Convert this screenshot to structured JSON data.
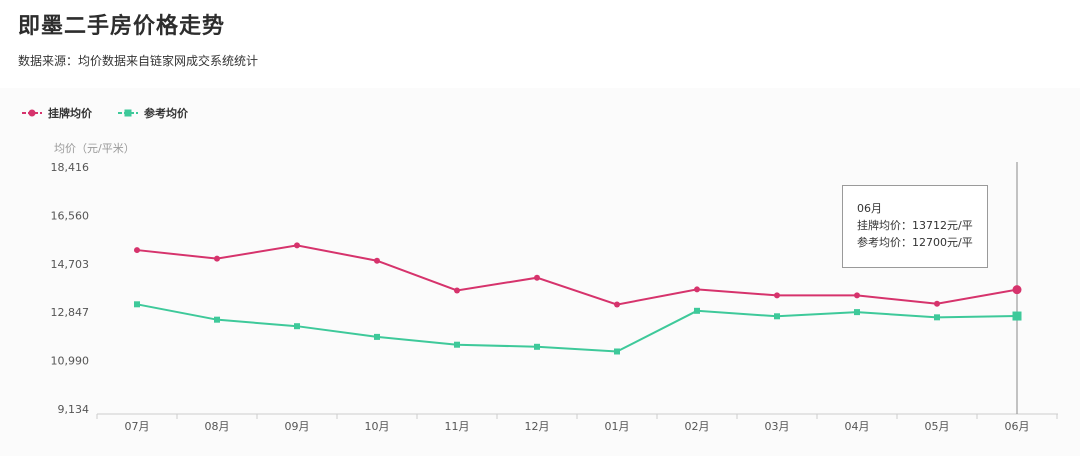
{
  "title": "即墨二手房价格走势",
  "subtitle": "数据来源：均价数据来自链家网成交系统统计",
  "colors": {
    "listing": "#d6336c",
    "reference": "#3ec99a"
  },
  "tooltip": {
    "month": "06月",
    "listing_line": "挂牌均价：13712元/平",
    "reference_line": "参考均价：12700元/平"
  },
  "chart_data": {
    "type": "line",
    "title": "",
    "ylabel": "均价（元/平米）",
    "xlabel": "",
    "ylim": [
      9134,
      18416
    ],
    "yticks": [
      "18,416",
      "16,560",
      "14,703",
      "12,847",
      "10,990",
      "9,134"
    ],
    "ytick_values": [
      18416,
      16560,
      14703,
      12847,
      10990,
      9134
    ],
    "categories": [
      "07月",
      "08月",
      "09月",
      "10月",
      "11月",
      "12月",
      "01月",
      "02月",
      "03月",
      "04月",
      "05月",
      "06月"
    ],
    "legend_position": "top-left",
    "grid": false,
    "series": [
      {
        "name": "挂牌均价",
        "marker": "circle",
        "color": "#d6336c",
        "values": [
          15230,
          14900,
          15410,
          14820,
          13680,
          14170,
          13140,
          13720,
          13490,
          13490,
          13170,
          13712
        ]
      },
      {
        "name": "参考均价",
        "marker": "square",
        "color": "#3ec99a",
        "values": [
          13150,
          12560,
          12310,
          11900,
          11600,
          11520,
          11340,
          12900,
          12690,
          12850,
          12650,
          12700
        ]
      }
    ]
  }
}
